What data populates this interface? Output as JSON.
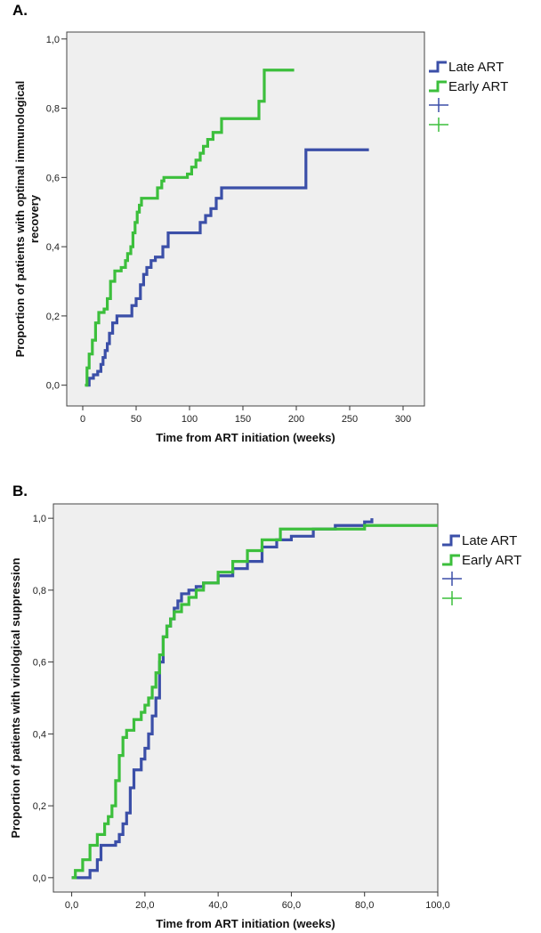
{
  "panels": [
    {
      "letter": "A."
    },
    {
      "letter": "B."
    }
  ],
  "colors": {
    "late": "#3b4fa8",
    "early": "#3cbf3c",
    "plot_bg": "#efefef",
    "frame": "#444444"
  },
  "chart_data": [
    {
      "type": "line",
      "step": true,
      "xlabel": "Time from ART initiation (weeks)",
      "ylabel": "Proportion of patients with optimal immunological recovery",
      "xlim": [
        -15,
        320
      ],
      "ylim": [
        -0.06,
        1.02
      ],
      "xticks": [
        0,
        50,
        100,
        150,
        200,
        250,
        300
      ],
      "xtick_labels": [
        "0",
        "50",
        "100",
        "150",
        "200",
        "250",
        "300"
      ],
      "yticks": [
        0,
        0.2,
        0.4,
        0.6,
        0.8,
        1.0
      ],
      "ytick_labels": [
        "0,0",
        "0,2",
        "0,4",
        "0,6",
        "0,8",
        "1,0"
      ],
      "legend": [
        "Late ART",
        "Early ART",
        "",
        ""
      ],
      "legend_position": "right",
      "series": [
        {
          "name": "Late ART",
          "color": "#3b4fa8",
          "x": [
            3,
            6,
            10,
            14,
            17,
            19,
            21,
            23,
            25,
            28,
            32,
            36,
            40,
            46,
            50,
            54,
            57,
            60,
            64,
            68,
            75,
            80,
            110,
            115,
            120,
            125,
            130,
            135,
            140,
            209,
            268
          ],
          "y": [
            0,
            0.02,
            0.03,
            0.04,
            0.06,
            0.08,
            0.1,
            0.12,
            0.15,
            0.18,
            0.2,
            0.2,
            0.2,
            0.23,
            0.25,
            0.29,
            0.32,
            0.34,
            0.36,
            0.37,
            0.4,
            0.44,
            0.47,
            0.49,
            0.51,
            0.54,
            0.57,
            0.57,
            0.57,
            0.68,
            0.68
          ]
        },
        {
          "name": "Early ART",
          "color": "#3cbf3c",
          "x": [
            2,
            4,
            6,
            9,
            12,
            15,
            20,
            23,
            26,
            30,
            36,
            40,
            42,
            45,
            47,
            49,
            51,
            53,
            55,
            58,
            70,
            74,
            76,
            78,
            98,
            102,
            106,
            110,
            113,
            117,
            122,
            130,
            160,
            165,
            170,
            198
          ],
          "y": [
            0,
            0.05,
            0.09,
            0.13,
            0.18,
            0.21,
            0.22,
            0.25,
            0.3,
            0.33,
            0.34,
            0.36,
            0.38,
            0.4,
            0.44,
            0.47,
            0.5,
            0.52,
            0.54,
            0.54,
            0.57,
            0.59,
            0.6,
            0.6,
            0.61,
            0.63,
            0.65,
            0.67,
            0.69,
            0.71,
            0.73,
            0.77,
            0.77,
            0.82,
            0.91,
            0.91
          ]
        }
      ]
    },
    {
      "type": "line",
      "step": true,
      "xlabel": "Time from ART initiation (weeks)",
      "ylabel": "Proportion of patients with virological suppression",
      "xlim": [
        -5,
        100
      ],
      "ylim": [
        -0.04,
        1.04
      ],
      "xticks": [
        0,
        20,
        40,
        60,
        80,
        100
      ],
      "xtick_labels": [
        "0,0",
        "20,0",
        "40,0",
        "60,0",
        "80,0",
        "100,0"
      ],
      "yticks": [
        0,
        0.2,
        0.4,
        0.6,
        0.8,
        1.0
      ],
      "ytick_labels": [
        "0,0",
        "0,2",
        "0,4",
        "0,6",
        "0,8",
        "1,0"
      ],
      "legend": [
        "Late ART",
        "Early ART",
        "",
        ""
      ],
      "legend_position": "right",
      "series": [
        {
          "name": "Late ART",
          "color": "#3b4fa8",
          "x": [
            0,
            2,
            5,
            7,
            8,
            9,
            12,
            13,
            14,
            15,
            16,
            17,
            18,
            19,
            20,
            21,
            22,
            23,
            24,
            25,
            26,
            27,
            28,
            29,
            30,
            32,
            34,
            36,
            40,
            44,
            48,
            52,
            56,
            60,
            66,
            72,
            80,
            82
          ],
          "y": [
            0,
            0,
            0.02,
            0.05,
            0.09,
            0.09,
            0.1,
            0.12,
            0.15,
            0.18,
            0.25,
            0.3,
            0.3,
            0.33,
            0.36,
            0.4,
            0.45,
            0.5,
            0.6,
            0.67,
            0.7,
            0.72,
            0.75,
            0.77,
            0.79,
            0.8,
            0.81,
            0.82,
            0.84,
            0.86,
            0.88,
            0.92,
            0.94,
            0.95,
            0.97,
            0.98,
            0.99,
            1.0
          ]
        },
        {
          "name": "Early ART",
          "color": "#3cbf3c",
          "x": [
            0,
            1,
            3,
            5,
            7,
            9,
            10,
            11,
            12,
            13,
            14,
            15,
            17,
            19,
            20,
            21,
            22,
            23,
            24,
            25,
            26,
            27,
            28,
            30,
            32,
            34,
            36,
            40,
            44,
            48,
            52,
            57,
            60,
            70,
            80,
            90,
            100
          ],
          "y": [
            0,
            0.02,
            0.05,
            0.09,
            0.12,
            0.15,
            0.17,
            0.2,
            0.27,
            0.34,
            0.39,
            0.41,
            0.44,
            0.46,
            0.48,
            0.5,
            0.53,
            0.57,
            0.62,
            0.67,
            0.7,
            0.72,
            0.74,
            0.76,
            0.78,
            0.8,
            0.82,
            0.85,
            0.88,
            0.91,
            0.94,
            0.97,
            0.97,
            0.97,
            0.98,
            0.98,
            0.98
          ]
        }
      ]
    }
  ]
}
